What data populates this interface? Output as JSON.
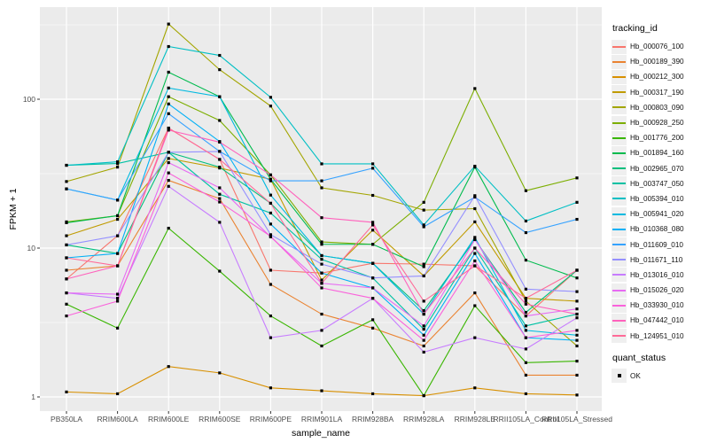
{
  "figure": {
    "background_color": "#FFFFFF",
    "panel_background_color": "#EBEBEB",
    "grid_color": "#FFFFFF",
    "tick_text_color": "#4D4D4D",
    "marker_color": "#000000"
  },
  "legend": {
    "tracking_title": "tracking_id",
    "quant_title": "quant_status",
    "quant_items": [
      {
        "label": "OK",
        "marker": "filled-black-square"
      }
    ]
  },
  "chart_data": {
    "type": "line",
    "title": "",
    "xlabel": "sample_name",
    "ylabel": "FPKM + 1",
    "y_scale": "log10",
    "y_ticks": [
      1,
      10,
      100
    ],
    "y_tick_labels": [
      "1",
      "10",
      "100"
    ],
    "y_minor_gridlines": [
      3.162,
      31.62,
      316.2
    ],
    "ylim": [
      0.85,
      420
    ],
    "grid": "white major and minor lines on grey panel",
    "legend_position": "right",
    "point_marker": {
      "shape": "filled-square",
      "color": "#000000",
      "meaning": "quant_status = OK"
    },
    "categories": [
      "PB350LA",
      "RRIM600LA",
      "RRIM600LE",
      "RRIM600SE",
      "RRIM600PE",
      "RRIM901LA",
      "RRIM928BA",
      "RRIM928LA",
      "RRIM928LE",
      "RRII105LA_Control",
      "RRII105LA_Stressed"
    ],
    "series": [
      {
        "name": "Hb_000076_100",
        "color": "#F8766D",
        "values": [
          6.2,
          12.1,
          64,
          39.4,
          7.1,
          6.8,
          7.9,
          7.8,
          7.6,
          3.5,
          7.1
        ]
      },
      {
        "name": "Hb_000189_390",
        "color": "#EA8331",
        "values": [
          7.1,
          7.6,
          28.5,
          21.5,
          5.7,
          3.6,
          2.9,
          2.2,
          5.0,
          1.4,
          1.4
        ]
      },
      {
        "name": "Hb_000212_300",
        "color": "#D89000",
        "values": [
          1.08,
          1.05,
          1.6,
          1.45,
          1.15,
          1.1,
          1.05,
          1.02,
          1.15,
          1.05,
          1.03
        ]
      },
      {
        "name": "Hb_000317_190",
        "color": "#C09B00",
        "values": [
          12.1,
          15.6,
          40,
          34.5,
          29,
          6.1,
          13.2,
          6.5,
          15,
          4.6,
          4.4
        ]
      },
      {
        "name": "Hb_000803_090",
        "color": "#A3A500",
        "values": [
          28,
          35,
          320,
          158,
          90,
          25.4,
          22.6,
          18,
          18.4,
          4.4,
          2.2
        ]
      },
      {
        "name": "Hb_000928_250",
        "color": "#7CAE00",
        "values": [
          15,
          16.5,
          104,
          72,
          31,
          11,
          10.6,
          20.3,
          118,
          24.3,
          29.6
        ]
      },
      {
        "name": "Hb_001776_200",
        "color": "#39B600",
        "values": [
          4.2,
          2.9,
          13.6,
          7.0,
          3.5,
          2.2,
          3.3,
          1.02,
          4.1,
          1.7,
          1.74
        ]
      },
      {
        "name": "Hb_001894_160",
        "color": "#00BB4E",
        "values": [
          14.8,
          16.5,
          152,
          104,
          29,
          10.6,
          10.6,
          7.5,
          35,
          8.3,
          6.3
        ]
      },
      {
        "name": "Hb_002965_070",
        "color": "#00BF7D",
        "values": [
          10.5,
          9.2,
          44,
          35,
          20,
          8.9,
          7.9,
          3.8,
          11.4,
          3.7,
          7.1
        ]
      },
      {
        "name": "Hb_003747_050",
        "color": "#00C1A3",
        "values": [
          36,
          37,
          44,
          23,
          17.2,
          8.4,
          6.3,
          2.85,
          10,
          3.0,
          3.6
        ]
      },
      {
        "name": "Hb_005394_010",
        "color": "#00BFC4",
        "values": [
          36,
          38,
          226,
          197,
          103,
          36.8,
          36.8,
          14.3,
          35.5,
          15.2,
          20.3
        ]
      },
      {
        "name": "Hb_005941_020",
        "color": "#00BAE0",
        "values": [
          25,
          21,
          119,
          104,
          22.7,
          8.9,
          7.9,
          3.6,
          11.8,
          2.8,
          2.6
        ]
      },
      {
        "name": "Hb_010368_080",
        "color": "#00B0F6",
        "values": [
          8.6,
          9.2,
          93,
          52,
          14.5,
          6.8,
          5.4,
          2.6,
          9.2,
          2.5,
          2.4
        ]
      },
      {
        "name": "Hb_011609_010",
        "color": "#35A2FF",
        "values": [
          25,
          21,
          80,
          44.6,
          28.3,
          28.3,
          34.4,
          13.9,
          22,
          12.7,
          15.6
        ]
      },
      {
        "name": "Hb_011671_110",
        "color": "#9590FF",
        "values": [
          10.5,
          12.1,
          44,
          44.6,
          12.3,
          7.8,
          6.3,
          6.5,
          22.5,
          5.3,
          5.1
        ]
      },
      {
        "name": "Hb_013016_010",
        "color": "#C77CFF",
        "values": [
          5.0,
          4.6,
          26,
          14.9,
          2.5,
          2.8,
          4.6,
          2.0,
          2.5,
          2.1,
          3.4
        ]
      },
      {
        "name": "Hb_015026_020",
        "color": "#E76BF3",
        "values": [
          5.0,
          4.9,
          37.5,
          25.4,
          11.9,
          5.8,
          5.4,
          3.0,
          11.4,
          3.5,
          3.9
        ]
      },
      {
        "name": "Hb_033930_010",
        "color": "#FA62DB",
        "values": [
          3.5,
          4.4,
          32,
          20.4,
          12,
          5.4,
          4.6,
          2.4,
          8.2,
          2.5,
          2.8
        ]
      },
      {
        "name": "Hb_047442_010",
        "color": "#FF62BC",
        "values": [
          6.2,
          7.6,
          62,
          51.5,
          31,
          16,
          14.9,
          3.6,
          10,
          4.2,
          3.6
        ]
      },
      {
        "name": "Hb_124951_010",
        "color": "#FF6A98",
        "values": [
          8.6,
          7.6,
          64,
          39.4,
          20,
          5.8,
          14.3,
          4.4,
          7.6,
          4.6,
          7.1
        ]
      }
    ]
  }
}
